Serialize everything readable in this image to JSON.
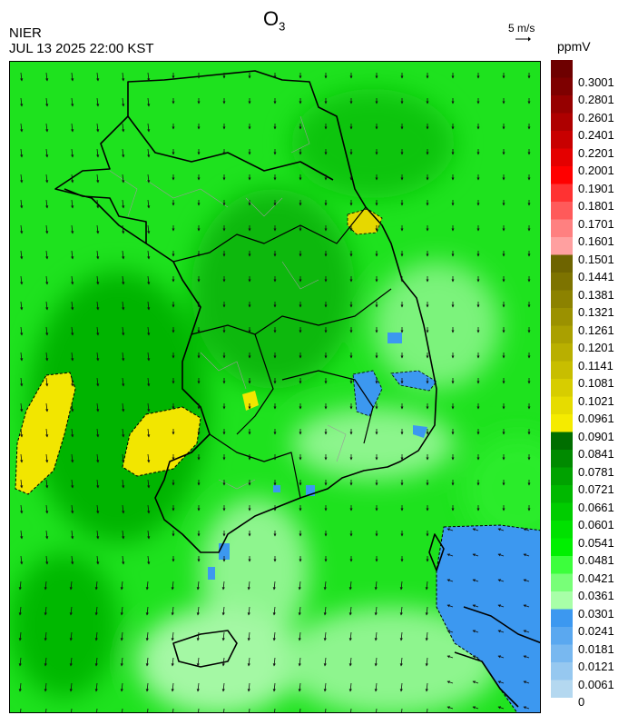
{
  "header": {
    "agency": "NIER",
    "datetime": "JUL 13 2025 22:00 KST",
    "title_main": "O",
    "title_sub": "3",
    "wind_reference": "5 m/s",
    "unit": "ppmV"
  },
  "legend": {
    "labels": [
      "0.3001",
      "0.2801",
      "0.2601",
      "0.2401",
      "0.2201",
      "0.2001",
      "0.1901",
      "0.1801",
      "0.1701",
      "0.1601",
      "0.1501",
      "0.1441",
      "0.1381",
      "0.1321",
      "0.1261",
      "0.1201",
      "0.1141",
      "0.1081",
      "0.1021",
      "0.0961",
      "0.0901",
      "0.0841",
      "0.0781",
      "0.0721",
      "0.0661",
      "0.0601",
      "0.0541",
      "0.0481",
      "0.0421",
      "0.0361",
      "0.0301",
      "0.0241",
      "0.0181",
      "0.0121",
      "0.0061",
      "0"
    ],
    "colors": [
      "#6e0000",
      "#7e0000",
      "#960000",
      "#ae0000",
      "#c80000",
      "#e40000",
      "#ff0000",
      "#ff3232",
      "#ff5a5a",
      "#ff8080",
      "#ffa0a0",
      "#6e6400",
      "#7d7300",
      "#8c8200",
      "#9b9100",
      "#aaa000",
      "#b9af00",
      "#c8be00",
      "#d7cd00",
      "#e6dc00",
      "#f5eb00",
      "#006e00",
      "#008a00",
      "#00a200",
      "#00b800",
      "#00cc00",
      "#00e100",
      "#00f000",
      "#3cff3c",
      "#78ff78",
      "#a8ffa8",
      "#3c98f0",
      "#5aa8f0",
      "#78b8f0",
      "#96c8f0",
      "#b4d8f0"
    ]
  }
}
